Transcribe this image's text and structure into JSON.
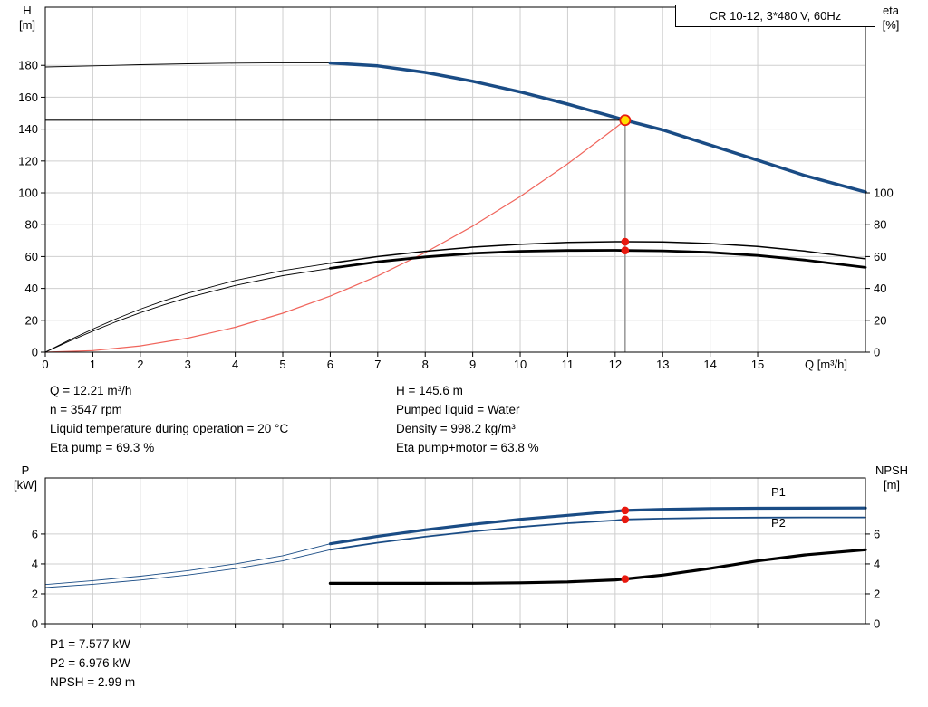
{
  "header": {
    "title_box": "CR 10-12, 3*480 V, 60Hz"
  },
  "axes_labels": {
    "top_left_line1": "H",
    "top_left_line2": "[m]",
    "top_right_line1": "eta",
    "top_right_line2": "[%]",
    "x_label": "Q [m³/h]",
    "bottom_left_line1": "P",
    "bottom_left_line2": "[kW]",
    "bottom_right_line1": "NPSH",
    "bottom_right_line2": "[m]",
    "p1_curve_label": "P1",
    "p2_curve_label": "P2"
  },
  "info": {
    "top_left": [
      "Q = 12.21 m³/h",
      "n = 3547 rpm",
      "Liquid temperature during operation = 20 °C",
      "Eta pump = 69.3 %"
    ],
    "top_right": [
      "H = 145.6 m",
      "Pumped liquid = Water",
      "Density = 998.2 kg/m³",
      "Eta pump+motor = 63.8 %"
    ],
    "bottom": [
      "P1 = 7.577 kW",
      "P2 = 6.976 kW",
      "NPSH = 2.99 m"
    ]
  },
  "colors": {
    "curve_blue": "#1a4c85",
    "marker_red": "#e8190f",
    "system_red": "#f0655c",
    "grid": "#cfcfcf",
    "gray_line": "#8f8f8f",
    "duty_yellow": "#ffdf00",
    "axis_black": "#000000"
  },
  "chart_data": [
    {
      "type": "line",
      "name": "qh-eta-chart",
      "title": "CR 10-12, 3*480 V, 60Hz",
      "xlabel": "Q [m³/h]",
      "ylabel_left": "H [m]",
      "ylabel_right": "eta [%]",
      "xlim": [
        0,
        17.27
      ],
      "ylim": [
        0,
        216.5
      ],
      "grid": true,
      "x_ticks": [
        0,
        1,
        2,
        3,
        4,
        5,
        6,
        7,
        8,
        9,
        10,
        11,
        12,
        13,
        14,
        15
      ],
      "x_tick_labels_visible": true,
      "y_ticks_left": [
        0,
        20,
        40,
        60,
        80,
        100,
        120,
        140,
        160,
        180
      ],
      "y_ticks_right": [
        0,
        20,
        40,
        60,
        80,
        100
      ],
      "series": [
        {
          "name": "system-curve",
          "color": "system_red",
          "width": 1.2,
          "points": [
            [
              0,
              0
            ],
            [
              1,
              0.98
            ],
            [
              2,
              3.91
            ],
            [
              3,
              8.79
            ],
            [
              4,
              15.63
            ],
            [
              5,
              24.42
            ],
            [
              6,
              35.16
            ],
            [
              7,
              47.85
            ],
            [
              8,
              62.5
            ],
            [
              9,
              79.11
            ],
            [
              10,
              97.66
            ],
            [
              11,
              118.17
            ],
            [
              12,
              140.63
            ],
            [
              12.21,
              145.6
            ]
          ]
        },
        {
          "name": "eta-pump-low-flow",
          "color": "black",
          "width": 0.9,
          "points": [
            [
              0,
              0
            ],
            [
              0.5,
              7.5
            ],
            [
              1,
              14.5
            ],
            [
              1.5,
              21
            ],
            [
              2,
              27
            ],
            [
              2.5,
              32.3
            ],
            [
              3,
              37
            ],
            [
              4,
              45
            ],
            [
              5,
              51.2
            ],
            [
              6,
              55.8
            ]
          ]
        },
        {
          "name": "eta-pump-motor-low-flow",
          "color": "black",
          "width": 0.9,
          "points": [
            [
              0,
              0
            ],
            [
              0.5,
              6.8
            ],
            [
              1,
              13.2
            ],
            [
              1.5,
              19.2
            ],
            [
              2,
              24.8
            ],
            [
              2.5,
              29.7
            ],
            [
              3,
              34.2
            ],
            [
              4,
              41.9
            ],
            [
              5,
              48
            ],
            [
              6,
              52.6
            ]
          ]
        },
        {
          "name": "eta-pump-curve",
          "color": "black",
          "width": 1.5,
          "points": [
            [
              6,
              55.8
            ],
            [
              7,
              60
            ],
            [
              8,
              63.3
            ],
            [
              9,
              65.9
            ],
            [
              10,
              67.7
            ],
            [
              11,
              68.9
            ],
            [
              12,
              69.3
            ],
            [
              12.21,
              69.3
            ],
            [
              13,
              69.2
            ],
            [
              14,
              68.2
            ],
            [
              15,
              66.3
            ],
            [
              16,
              63.4
            ],
            [
              17.27,
              58.6
            ]
          ]
        },
        {
          "name": "eta-pump-motor-curve",
          "color": "black",
          "width": 2.8,
          "points": [
            [
              6,
              52.6
            ],
            [
              7,
              56.7
            ],
            [
              8,
              59.8
            ],
            [
              9,
              62
            ],
            [
              10,
              63.3
            ],
            [
              11,
              63.8
            ],
            [
              12,
              63.9
            ],
            [
              12.21,
              63.8
            ],
            [
              13,
              63.6
            ],
            [
              14,
              62.6
            ],
            [
              15,
              60.7
            ],
            [
              16,
              57.8
            ],
            [
              17.27,
              53.2
            ]
          ]
        },
        {
          "name": "head-curve-low-flow",
          "color": "black",
          "width": 0.9,
          "points": [
            [
              0,
              179
            ],
            [
              1,
              179.7
            ],
            [
              2,
              180.4
            ],
            [
              3,
              181
            ],
            [
              4,
              181.4
            ],
            [
              5,
              181.6
            ],
            [
              6,
              181.5
            ]
          ]
        },
        {
          "name": "head-curve",
          "color": "blue",
          "width": 3.5,
          "points": [
            [
              6,
              181.5
            ],
            [
              7,
              179.7
            ],
            [
              8,
              175.6
            ],
            [
              9,
              170
            ],
            [
              10,
              163.3
            ],
            [
              11,
              155.7
            ],
            [
              12,
              147.4
            ],
            [
              12.21,
              145.6
            ],
            [
              13,
              139.5
            ],
            [
              14,
              130
            ],
            [
              15,
              120.5
            ],
            [
              16,
              110.8
            ],
            [
              17.27,
              100.5
            ]
          ]
        }
      ],
      "crosshair": {
        "q": 12.21,
        "h": 145.6
      },
      "duty_point": {
        "q": 12.21,
        "h": 145.6
      },
      "red_dots": [
        [
          12.21,
          69.3
        ],
        [
          12.21,
          63.8
        ]
      ]
    },
    {
      "type": "line",
      "name": "power-npsh-chart",
      "ylabel_left": "P [kW]",
      "ylabel_right": "NPSH [m]",
      "xlim": [
        0,
        17.27
      ],
      "ylim": [
        0,
        9.75
      ],
      "grid": true,
      "x_ticks": [
        0,
        1,
        2,
        3,
        4,
        5,
        6,
        7,
        8,
        9,
        10,
        11,
        12,
        13,
        14,
        15
      ],
      "x_tick_labels_visible": false,
      "y_ticks_left": [
        0,
        2,
        4,
        6
      ],
      "y_ticks_right": [
        0,
        2,
        4,
        6
      ],
      "series": [
        {
          "name": "p1-low-flow",
          "color": "blue",
          "width": 0.9,
          "points": [
            [
              0,
              2.62
            ],
            [
              1,
              2.88
            ],
            [
              2,
              3.18
            ],
            [
              3,
              3.55
            ],
            [
              4,
              4.0
            ],
            [
              5,
              4.55
            ],
            [
              6,
              5.35
            ]
          ]
        },
        {
          "name": "p2-low-flow",
          "color": "blue",
          "width": 0.9,
          "points": [
            [
              0,
              2.42
            ],
            [
              1,
              2.64
            ],
            [
              2,
              2.92
            ],
            [
              3,
              3.26
            ],
            [
              4,
              3.68
            ],
            [
              5,
              4.2
            ],
            [
              6,
              4.95
            ]
          ]
        },
        {
          "name": "p2-curve",
          "color": "blue",
          "width": 1.8,
          "points": [
            [
              6,
              4.95
            ],
            [
              7,
              5.42
            ],
            [
              8,
              5.82
            ],
            [
              9,
              6.17
            ],
            [
              10,
              6.47
            ],
            [
              11,
              6.72
            ],
            [
              12,
              6.91
            ],
            [
              12.21,
              6.976
            ],
            [
              13,
              7.03
            ],
            [
              14,
              7.08
            ],
            [
              15,
              7.1
            ],
            [
              16,
              7.11
            ],
            [
              17.27,
              7.11
            ]
          ]
        },
        {
          "name": "p1-curve",
          "color": "blue",
          "width": 3.2,
          "points": [
            [
              6,
              5.35
            ],
            [
              7,
              5.85
            ],
            [
              8,
              6.28
            ],
            [
              9,
              6.65
            ],
            [
              10,
              6.98
            ],
            [
              11,
              7.25
            ],
            [
              12,
              7.52
            ],
            [
              12.21,
              7.577
            ],
            [
              13,
              7.65
            ],
            [
              14,
              7.7
            ],
            [
              15,
              7.72
            ],
            [
              16,
              7.73
            ],
            [
              17.27,
              7.74
            ]
          ]
        },
        {
          "name": "npsh-curve",
          "color": "black",
          "width": 3.2,
          "points": [
            [
              6,
              2.7
            ],
            [
              7,
              2.7
            ],
            [
              8,
              2.7
            ],
            [
              9,
              2.71
            ],
            [
              10,
              2.74
            ],
            [
              11,
              2.8
            ],
            [
              12,
              2.93
            ],
            [
              12.21,
              2.99
            ],
            [
              13,
              3.25
            ],
            [
              14,
              3.7
            ],
            [
              15,
              4.2
            ],
            [
              16,
              4.6
            ],
            [
              17.27,
              4.95
            ]
          ]
        }
      ],
      "red_dots": [
        [
          12.21,
          7.577
        ],
        [
          12.21,
          6.976
        ],
        [
          12.21,
          2.99
        ]
      ]
    }
  ]
}
